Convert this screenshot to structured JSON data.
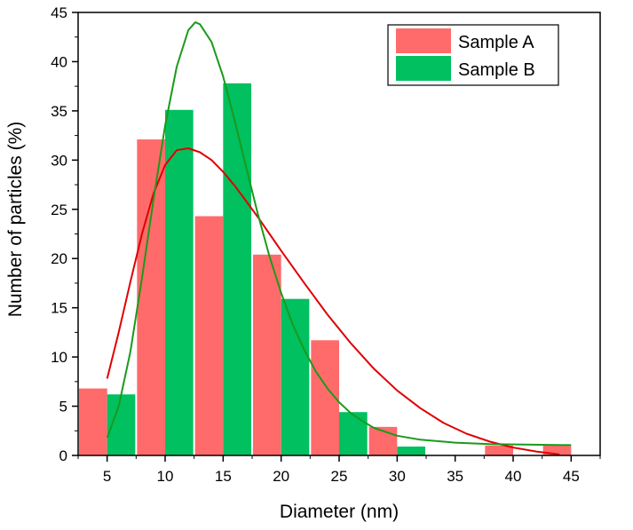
{
  "chart_data": {
    "type": "bar",
    "xlabel": "Diameter (nm)",
    "ylabel": "Number of particles (%)",
    "x_ticks": [
      5,
      10,
      15,
      20,
      25,
      30,
      35,
      40,
      45
    ],
    "y_ticks": [
      0,
      5,
      10,
      15,
      20,
      25,
      30,
      35,
      40,
      45
    ],
    "xlim": [
      2.5,
      47.5
    ],
    "ylim": [
      0,
      45
    ],
    "legend_position": "top-right",
    "series": [
      {
        "name": "Sample A",
        "color": "#ff6b6b",
        "bins": [
          5,
          10,
          15,
          20,
          25,
          30,
          35,
          40,
          45
        ],
        "values": [
          6.8,
          32.1,
          24.3,
          20.4,
          11.7,
          2.9,
          0,
          1.0,
          1.0
        ],
        "fit_color": "#e00000",
        "fit": [
          [
            5,
            7.8
          ],
          [
            6,
            12.5
          ],
          [
            7,
            17.6
          ],
          [
            8,
            22.5
          ],
          [
            9,
            26.6
          ],
          [
            10,
            29.5
          ],
          [
            11,
            31.0
          ],
          [
            12,
            31.2
          ],
          [
            13,
            30.8
          ],
          [
            14,
            30.0
          ],
          [
            15,
            28.8
          ],
          [
            16,
            27.4
          ],
          [
            17,
            25.8
          ],
          [
            18,
            24.2
          ],
          [
            19,
            22.5
          ],
          [
            20,
            20.8
          ],
          [
            22,
            17.5
          ],
          [
            24,
            14.3
          ],
          [
            26,
            11.4
          ],
          [
            28,
            8.8
          ],
          [
            30,
            6.6
          ],
          [
            32,
            4.8
          ],
          [
            34,
            3.3
          ],
          [
            36,
            2.2
          ],
          [
            38,
            1.4
          ],
          [
            40,
            0.8
          ],
          [
            42,
            0.4
          ],
          [
            44,
            0.1
          ]
        ]
      },
      {
        "name": "Sample B",
        "color": "#00c060",
        "bins": [
          5,
          10,
          15,
          20,
          25,
          30,
          35,
          40,
          45
        ],
        "values": [
          6.2,
          35.1,
          37.8,
          15.9,
          4.4,
          0.9,
          0,
          0,
          0
        ],
        "fit_color": "#1a9a1a",
        "fit": [
          [
            5,
            1.8
          ],
          [
            6,
            5.0
          ],
          [
            7,
            10.5
          ],
          [
            8,
            18.0
          ],
          [
            9,
            26.0
          ],
          [
            10,
            33.5
          ],
          [
            11,
            39.5
          ],
          [
            12,
            43.2
          ],
          [
            12.6,
            44.0
          ],
          [
            13,
            43.8
          ],
          [
            14,
            42.0
          ],
          [
            15,
            38.5
          ],
          [
            16,
            34.0
          ],
          [
            17,
            29.2
          ],
          [
            18,
            24.5
          ],
          [
            19,
            20.2
          ],
          [
            20,
            16.5
          ],
          [
            21,
            13.3
          ],
          [
            22,
            10.7
          ],
          [
            23,
            8.5
          ],
          [
            24,
            6.8
          ],
          [
            25,
            5.4
          ],
          [
            26,
            4.3
          ],
          [
            27,
            3.5
          ],
          [
            28,
            2.8
          ],
          [
            30,
            2.0
          ],
          [
            32,
            1.6
          ],
          [
            35,
            1.3
          ],
          [
            38,
            1.15
          ],
          [
            41,
            1.1
          ],
          [
            45,
            1.05
          ]
        ]
      }
    ]
  }
}
